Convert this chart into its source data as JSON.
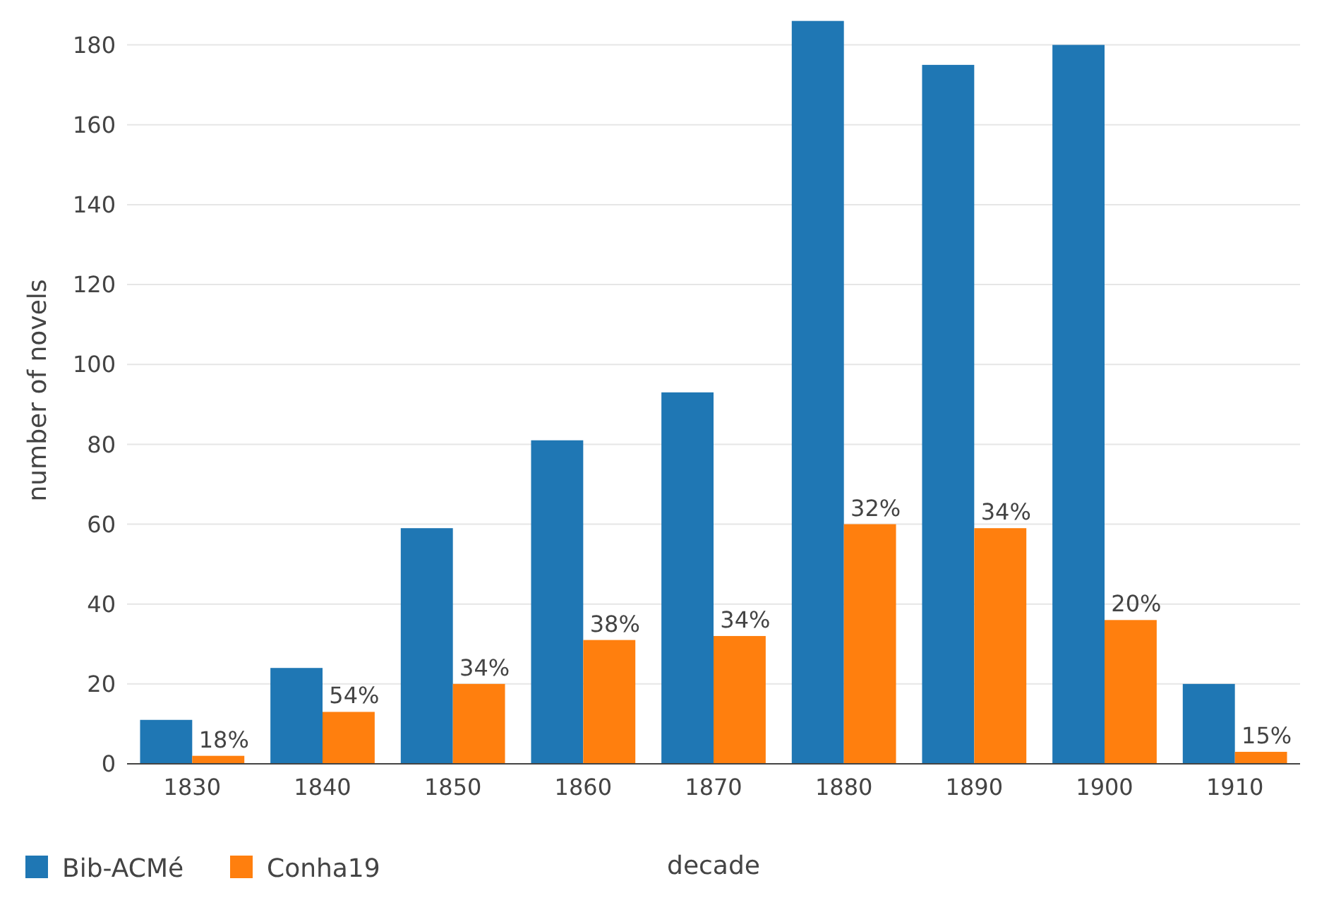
{
  "chart_data": {
    "type": "bar",
    "xlabel": "decade",
    "ylabel": "number of novels",
    "categories": [
      "1830",
      "1840",
      "1850",
      "1860",
      "1870",
      "1880",
      "1890",
      "1900",
      "1910"
    ],
    "series": [
      {
        "name": "Bib-ACMé",
        "color": "#1f77b4",
        "values": [
          11,
          24,
          59,
          81,
          93,
          186,
          175,
          180,
          20
        ]
      },
      {
        "name": "Conha19",
        "color": "#ff7f0e",
        "values": [
          2,
          13,
          20,
          31,
          32,
          60,
          59,
          36,
          3
        ]
      }
    ],
    "annotations": [
      {
        "text": "18%",
        "x": "1830",
        "y": 2
      },
      {
        "text": "54%",
        "x": "1840",
        "y": 13
      },
      {
        "text": "34%",
        "x": "1850",
        "y": 20
      },
      {
        "text": "38%",
        "x": "1860",
        "y": 31
      },
      {
        "text": "34%",
        "x": "1870",
        "y": 32
      },
      {
        "text": "32%",
        "x": "1880",
        "y": 60
      },
      {
        "text": "34%",
        "x": "1890",
        "y": 59
      },
      {
        "text": "20%",
        "x": "1900",
        "y": 36
      },
      {
        "text": "15%",
        "x": "1910",
        "y": 3
      }
    ],
    "ylim": [
      0,
      187
    ],
    "yticks": [
      0,
      20,
      40,
      60,
      80,
      100,
      120,
      140,
      160,
      180
    ],
    "grid": "y",
    "legend": "bottom left"
  }
}
